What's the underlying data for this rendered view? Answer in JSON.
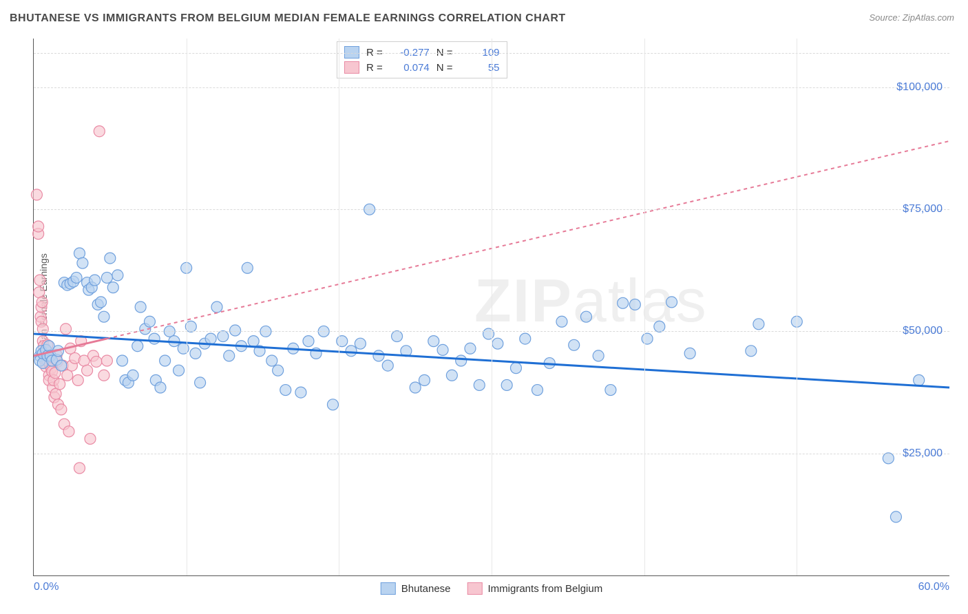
{
  "title": "BHUTANESE VS IMMIGRANTS FROM BELGIUM MEDIAN FEMALE EARNINGS CORRELATION CHART",
  "source": "Source: ZipAtlas.com",
  "watermark": {
    "zip": "ZIP",
    "atlas": "atlas"
  },
  "y_axis_label": "Median Female Earnings",
  "chart": {
    "type": "scatter",
    "xlim": [
      0,
      60
    ],
    "ylim": [
      0,
      110000
    ],
    "x_ticks": [
      {
        "v": 0,
        "label": "0.0%"
      },
      {
        "v": 60,
        "label": "60.0%"
      }
    ],
    "x_grid": [
      10,
      20,
      30,
      40,
      50
    ],
    "y_ticks": [
      {
        "v": 25000,
        "label": "$25,000"
      },
      {
        "v": 50000,
        "label": "$50,000"
      },
      {
        "v": 75000,
        "label": "$75,000"
      },
      {
        "v": 100000,
        "label": "$100,000"
      }
    ],
    "background": "#ffffff",
    "grid_color_h": "#d9d9d9",
    "grid_color_v": "#e8e8e8",
    "axis_color": "#555555",
    "marker_radius": 8,
    "marker_stroke_width": 1.2,
    "series": [
      {
        "name": "Bhutanese",
        "fill": "#b9d3f0",
        "stroke": "#6fa0dd",
        "fill_opacity": 0.65,
        "trend": {
          "color": "#1f6fd4",
          "width": 3,
          "dash": "none",
          "y_at_x0": 49500,
          "y_at_x60": 38500,
          "x_data_max": 60
        },
        "R": "-0.277",
        "N": "109",
        "points": [
          [
            0.4,
            45000
          ],
          [
            0.4,
            44000
          ],
          [
            0.5,
            46000
          ],
          [
            0.6,
            43500
          ],
          [
            0.6,
            45500
          ],
          [
            0.8,
            46200
          ],
          [
            0.9,
            45000
          ],
          [
            1.0,
            47000
          ],
          [
            1.1,
            45000
          ],
          [
            1.2,
            44000
          ],
          [
            1.5,
            44200
          ],
          [
            1.6,
            46000
          ],
          [
            1.8,
            43000
          ],
          [
            2.0,
            60000
          ],
          [
            2.2,
            59500
          ],
          [
            2.4,
            59800
          ],
          [
            2.6,
            60200
          ],
          [
            2.8,
            61000
          ],
          [
            3.0,
            66000
          ],
          [
            3.2,
            64000
          ],
          [
            3.5,
            60000
          ],
          [
            3.6,
            58500
          ],
          [
            3.8,
            59000
          ],
          [
            4.0,
            60500
          ],
          [
            4.2,
            55500
          ],
          [
            4.4,
            56000
          ],
          [
            4.6,
            53000
          ],
          [
            4.8,
            61000
          ],
          [
            5.0,
            65000
          ],
          [
            5.2,
            59000
          ],
          [
            5.5,
            61500
          ],
          [
            5.8,
            44000
          ],
          [
            6.0,
            40000
          ],
          [
            6.2,
            39500
          ],
          [
            6.5,
            41000
          ],
          [
            6.8,
            47000
          ],
          [
            7.0,
            55000
          ],
          [
            7.3,
            50500
          ],
          [
            7.6,
            52000
          ],
          [
            7.9,
            48500
          ],
          [
            8.0,
            40000
          ],
          [
            8.3,
            38500
          ],
          [
            8.6,
            44000
          ],
          [
            8.9,
            50000
          ],
          [
            9.2,
            48000
          ],
          [
            9.5,
            42000
          ],
          [
            9.8,
            46500
          ],
          [
            10.0,
            63000
          ],
          [
            10.3,
            51000
          ],
          [
            10.6,
            45500
          ],
          [
            10.9,
            39500
          ],
          [
            11.2,
            47500
          ],
          [
            11.6,
            48500
          ],
          [
            12.0,
            55000
          ],
          [
            12.4,
            49000
          ],
          [
            12.8,
            45000
          ],
          [
            13.2,
            50200
          ],
          [
            13.6,
            47000
          ],
          [
            14.0,
            63000
          ],
          [
            14.4,
            48000
          ],
          [
            14.8,
            46000
          ],
          [
            15.2,
            50000
          ],
          [
            15.6,
            44000
          ],
          [
            16.0,
            42000
          ],
          [
            16.5,
            38000
          ],
          [
            17.0,
            46500
          ],
          [
            17.5,
            37500
          ],
          [
            18.0,
            48000
          ],
          [
            18.5,
            45500
          ],
          [
            19.0,
            50000
          ],
          [
            19.6,
            35000
          ],
          [
            20.2,
            48000
          ],
          [
            20.8,
            46000
          ],
          [
            21.4,
            47500
          ],
          [
            22.0,
            75000
          ],
          [
            22.6,
            45000
          ],
          [
            23.2,
            43000
          ],
          [
            23.8,
            49000
          ],
          [
            24.4,
            46000
          ],
          [
            25.0,
            38500
          ],
          [
            25.6,
            40000
          ],
          [
            26.2,
            48000
          ],
          [
            26.8,
            46200
          ],
          [
            27.4,
            41000
          ],
          [
            28.0,
            44000
          ],
          [
            28.6,
            46500
          ],
          [
            29.2,
            39000
          ],
          [
            29.8,
            49500
          ],
          [
            30.4,
            47500
          ],
          [
            31.0,
            39000
          ],
          [
            31.6,
            42500
          ],
          [
            32.2,
            48500
          ],
          [
            33.0,
            38000
          ],
          [
            33.8,
            43500
          ],
          [
            34.6,
            52000
          ],
          [
            35.4,
            47200
          ],
          [
            36.2,
            53000
          ],
          [
            37.0,
            45000
          ],
          [
            37.8,
            38000
          ],
          [
            38.6,
            55800
          ],
          [
            39.4,
            55500
          ],
          [
            40.2,
            48500
          ],
          [
            41.0,
            51000
          ],
          [
            41.8,
            56000
          ],
          [
            43.0,
            45500
          ],
          [
            47.0,
            46000
          ],
          [
            47.5,
            51500
          ],
          [
            50.0,
            52000
          ],
          [
            56.0,
            24000
          ],
          [
            56.5,
            12000
          ],
          [
            58.0,
            40000
          ]
        ]
      },
      {
        "name": "Immigrants from Belgium",
        "fill": "#f7c6d0",
        "stroke": "#e98aa4",
        "fill_opacity": 0.65,
        "trend": {
          "color": "#e67a97",
          "width": 2,
          "dash": "5,5",
          "y_at_x0": 45000,
          "y_at_x60": 89000,
          "x_data_max": 4.8,
          "solid_width": 3
        },
        "R": "0.074",
        "N": "55",
        "points": [
          [
            0.2,
            78000
          ],
          [
            0.3,
            70000
          ],
          [
            0.3,
            71500
          ],
          [
            0.35,
            58000
          ],
          [
            0.4,
            60500
          ],
          [
            0.45,
            53000
          ],
          [
            0.5,
            52000
          ],
          [
            0.5,
            55000
          ],
          [
            0.55,
            56000
          ],
          [
            0.6,
            50500
          ],
          [
            0.6,
            48000
          ],
          [
            0.65,
            47000
          ],
          [
            0.7,
            45000
          ],
          [
            0.7,
            44200
          ],
          [
            0.75,
            46000
          ],
          [
            0.8,
            43500
          ],
          [
            0.8,
            42800
          ],
          [
            0.85,
            45700
          ],
          [
            0.9,
            44000
          ],
          [
            0.9,
            47200
          ],
          [
            1.0,
            41000
          ],
          [
            1.0,
            40000
          ],
          [
            1.05,
            43200
          ],
          [
            1.1,
            45000
          ],
          [
            1.15,
            42500
          ],
          [
            1.2,
            41800
          ],
          [
            1.25,
            38500
          ],
          [
            1.3,
            40000
          ],
          [
            1.35,
            36500
          ],
          [
            1.4,
            41500
          ],
          [
            1.45,
            37200
          ],
          [
            1.5,
            45200
          ],
          [
            1.55,
            43800
          ],
          [
            1.6,
            35000
          ],
          [
            1.7,
            39200
          ],
          [
            1.8,
            34000
          ],
          [
            1.9,
            43000
          ],
          [
            2.0,
            31000
          ],
          [
            2.1,
            50500
          ],
          [
            2.2,
            41000
          ],
          [
            2.3,
            29500
          ],
          [
            2.4,
            46500
          ],
          [
            2.5,
            43000
          ],
          [
            2.7,
            44500
          ],
          [
            2.9,
            40000
          ],
          [
            3.0,
            22000
          ],
          [
            3.1,
            48000
          ],
          [
            3.3,
            44000
          ],
          [
            3.5,
            42000
          ],
          [
            3.7,
            28000
          ],
          [
            3.9,
            45000
          ],
          [
            4.1,
            43800
          ],
          [
            4.3,
            91000
          ],
          [
            4.6,
            41000
          ],
          [
            4.8,
            44000
          ]
        ]
      }
    ]
  },
  "legend_top": {
    "rows": [
      {
        "swatch_fill": "#b9d3f0",
        "swatch_stroke": "#6fa0dd",
        "R_label": "R =",
        "R": "-0.277",
        "N_label": "N =",
        "N": "109"
      },
      {
        "swatch_fill": "#f7c6d0",
        "swatch_stroke": "#e98aa4",
        "R_label": "R =",
        "R": "0.074",
        "N_label": "N =",
        "N": "55"
      }
    ]
  },
  "legend_bottom": [
    {
      "swatch_fill": "#b9d3f0",
      "swatch_stroke": "#6fa0dd",
      "label": "Bhutanese"
    },
    {
      "swatch_fill": "#f7c6d0",
      "swatch_stroke": "#e98aa4",
      "label": "Immigrants from Belgium"
    }
  ]
}
